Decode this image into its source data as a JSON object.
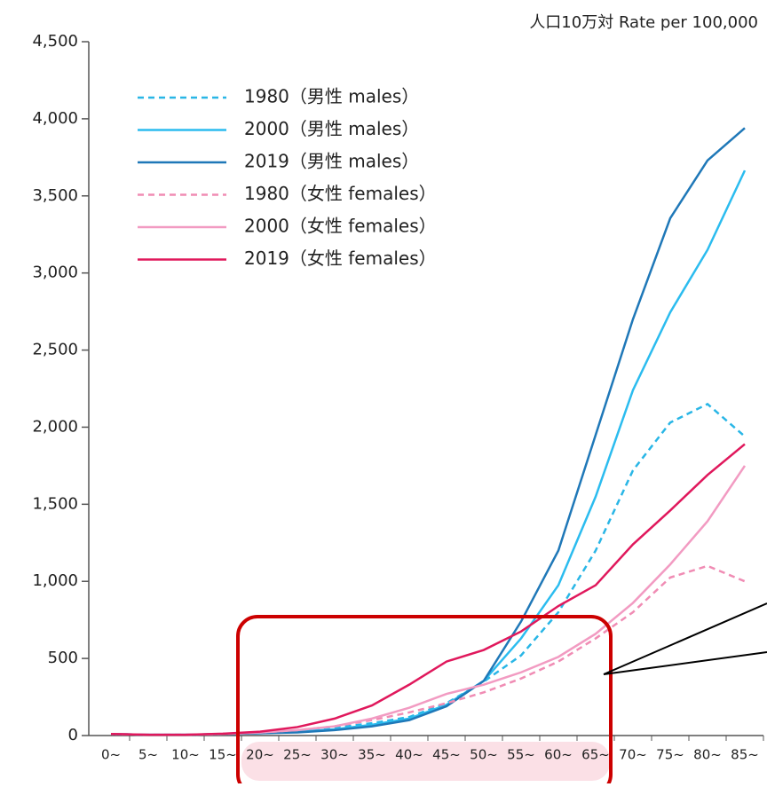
{
  "chart_data": {
    "type": "line",
    "title": "人口10万対  Rate per 100,000",
    "categories": [
      "0~",
      "5~",
      "10~",
      "15~",
      "20~",
      "25~",
      "30~",
      "35~",
      "40~",
      "45~",
      "50~",
      "55~",
      "60~",
      "65~",
      "70~",
      "75~",
      "80~",
      "85~"
    ],
    "ylim": [
      0,
      4500
    ],
    "yticks": [
      0,
      500,
      {
        "value": 1000,
        "label": "1,000"
      },
      {
        "value": 1500,
        "label": "1,500"
      },
      {
        "value": 2000,
        "label": "2,000"
      },
      {
        "value": 2500,
        "label": "2,500"
      },
      {
        "value": 3000,
        "label": "3,000"
      },
      {
        "value": 3500,
        "label": "3,500"
      },
      {
        "value": 4000,
        "label": "4,000"
      },
      {
        "value": 4500,
        "label": "4,500"
      }
    ],
    "legend": "upper left",
    "series": [
      {
        "name": "1980（男性 males）",
        "color": "#29b6e6",
        "dashed": true,
        "values": [
          10,
          5,
          5,
          10,
          20,
          30,
          50,
          80,
          120,
          210,
          350,
          520,
          800,
          1200,
          1720,
          2030,
          2150,
          1940
        ]
      },
      {
        "name": "2000（男性 males）",
        "color": "#2bbcef",
        "dashed": false,
        "values": [
          10,
          5,
          5,
          10,
          15,
          25,
          40,
          70,
          110,
          200,
          355,
          630,
          975,
          1550,
          2240,
          2745,
          3150,
          3665
        ]
      },
      {
        "name": "2019（男性 males）",
        "color": "#1f78b8",
        "dashed": false,
        "values": [
          10,
          5,
          5,
          10,
          15,
          20,
          35,
          60,
          100,
          190,
          355,
          740,
          1200,
          1950,
          2700,
          3355,
          3730,
          3940
        ]
      },
      {
        "name": "1980（女性 females）",
        "color": "#f08cb4",
        "dashed": true,
        "values": [
          10,
          5,
          5,
          10,
          20,
          35,
          60,
          100,
          150,
          210,
          280,
          370,
          480,
          630,
          800,
          1025,
          1100,
          1000
        ]
      },
      {
        "name": "2000（女性 females）",
        "color": "#f29bc2",
        "dashed": false,
        "values": [
          10,
          5,
          5,
          10,
          20,
          35,
          60,
          110,
          180,
          270,
          330,
          410,
          510,
          660,
          860,
          1110,
          1390,
          1750
        ]
      },
      {
        "name": "2019（女性 females）",
        "color": "#e0185c",
        "dashed": false,
        "values": [
          10,
          5,
          5,
          12,
          25,
          55,
          110,
          195,
          330,
          480,
          555,
          675,
          840,
          975,
          1240,
          1460,
          1690,
          1890
        ]
      }
    ]
  }
}
